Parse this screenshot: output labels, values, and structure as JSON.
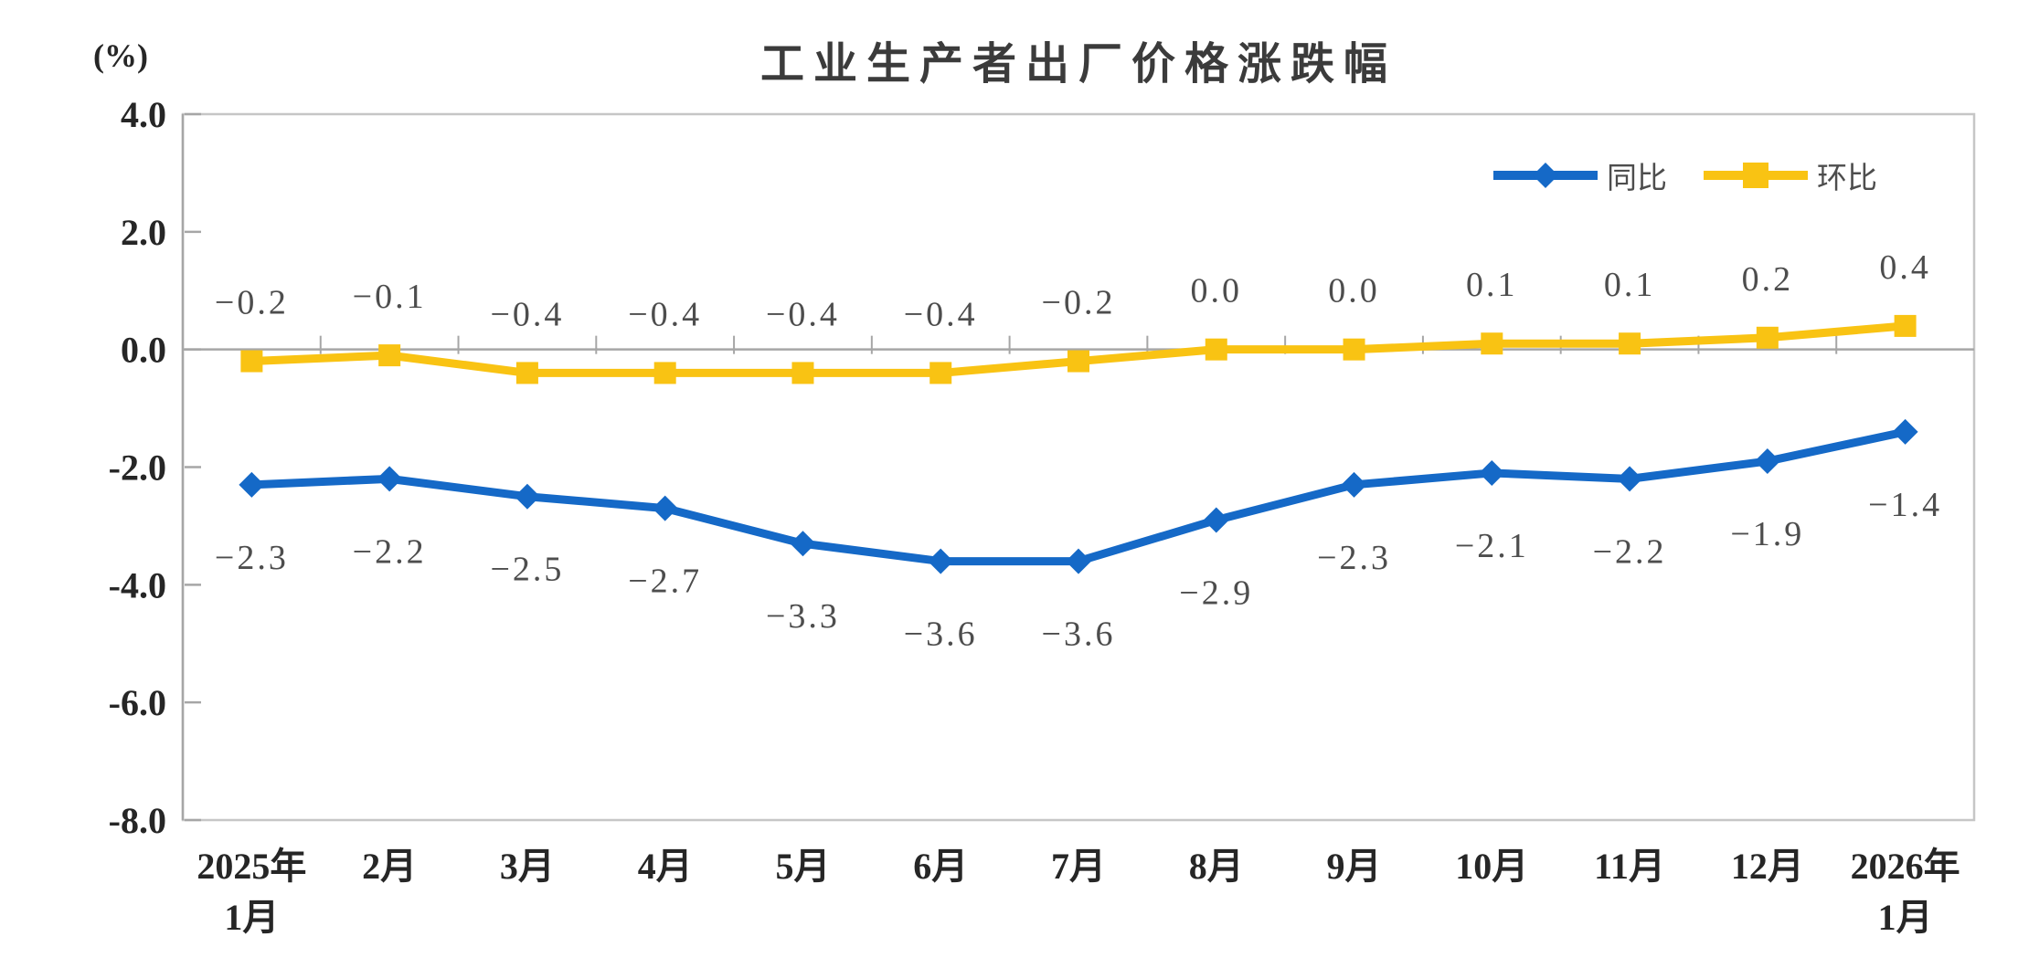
{
  "page": {
    "background": "#FFFFFF"
  },
  "chart_data": {
    "type": "line",
    "title": "工业生产者出厂价格涨跌幅",
    "unit_label": "(%)",
    "categories": [
      "2025年\n1月",
      "2月",
      "3月",
      "4月",
      "5月",
      "6月",
      "7月",
      "8月",
      "9月",
      "10月",
      "11月",
      "12月",
      "2026年\n1月"
    ],
    "series": [
      {
        "name": "同比",
        "marker": "diamond",
        "color": "#1569C7",
        "label_position": "below",
        "values": [
          -2.3,
          -2.2,
          -2.5,
          -2.7,
          -3.3,
          -3.6,
          -3.6,
          -2.9,
          -2.3,
          -2.1,
          -2.2,
          -1.9,
          -1.4
        ]
      },
      {
        "name": "环比",
        "marker": "square",
        "color": "#F9C313",
        "label_position": "above",
        "values": [
          -0.2,
          -0.1,
          -0.4,
          -0.4,
          -0.4,
          -0.4,
          -0.2,
          0.0,
          0.0,
          0.1,
          0.1,
          0.2,
          0.4
        ]
      }
    ],
    "ylim": [
      -8,
      4
    ],
    "yticks": [
      4.0,
      2.0,
      0.0,
      -2.0,
      -4.0,
      -6.0,
      -8.0
    ],
    "grid": false,
    "legend_position": "top-right",
    "axis_color": "#A6A6A6",
    "border_color": "#C6C6C6",
    "data_label_color": "#4D4D4D",
    "axis_text_color": "#262626"
  }
}
